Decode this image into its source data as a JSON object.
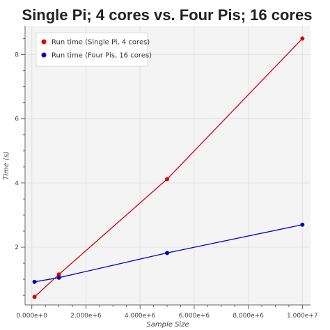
{
  "chart_data": {
    "type": "line",
    "title": "Single Pi; 4 cores vs. Four Pis; 16 cores",
    "xlabel": "Sample Size",
    "ylabel": "Time (s)",
    "xlim": [
      -250000,
      10300000
    ],
    "ylim": [
      0.2,
      8.9
    ],
    "x_ticks": [
      0,
      2000000,
      4000000,
      6000000,
      8000000,
      10000000
    ],
    "x_tick_labels": [
      "0.000e+0",
      "2.000e+6",
      "4.000e+6",
      "6.000e+6",
      "8.000e+6",
      "1.000e+7"
    ],
    "y_ticks": [
      2,
      4,
      6,
      8
    ],
    "y_tick_labels": [
      "2",
      "4",
      "6",
      "8"
    ],
    "grid": true,
    "legend_position": "top-left",
    "series": [
      {
        "name": "Run time (Single Pi, 4 cores)",
        "color": "#dd0000",
        "x": [
          100000,
          1000000,
          5000000,
          10000000
        ],
        "y": [
          0.45,
          1.15,
          4.12,
          8.5
        ]
      },
      {
        "name": "Run time (Four Pis, 16 cores)",
        "color": "#0000cc",
        "x": [
          100000,
          1000000,
          5000000,
          10000000
        ],
        "y": [
          0.92,
          1.05,
          1.82,
          2.7
        ]
      }
    ]
  }
}
